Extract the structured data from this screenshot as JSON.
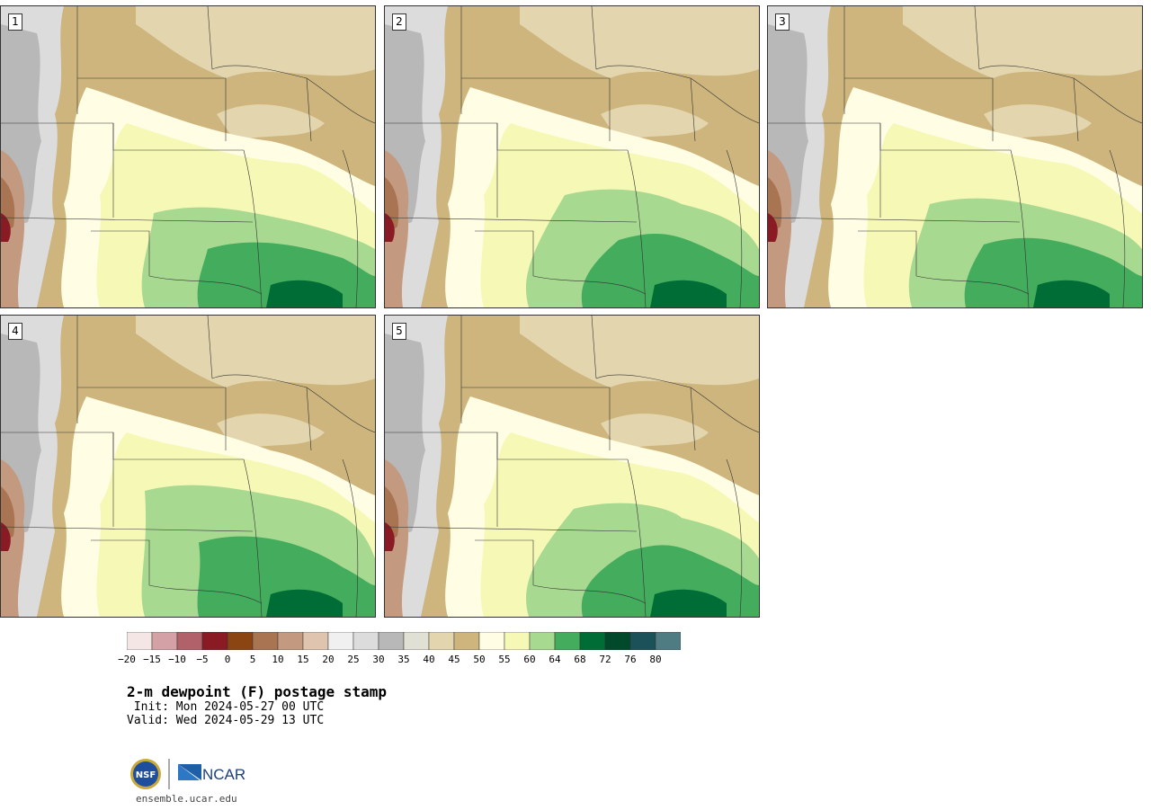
{
  "panels": [
    {
      "label": "1"
    },
    {
      "label": "2"
    },
    {
      "label": "3"
    },
    {
      "label": "4"
    },
    {
      "label": "5"
    }
  ],
  "colorbar": {
    "ticks": [
      "−20",
      "−15",
      "−10",
      "−5",
      "0",
      "5",
      "10",
      "15",
      "20",
      "25",
      "30",
      "35",
      "40",
      "45",
      "50",
      "55",
      "60",
      "64",
      "68",
      "72",
      "76",
      "80"
    ],
    "colors": [
      "#f5e6e6",
      "#d4a1a6",
      "#b0616a",
      "#8a1a24",
      "#8b4513",
      "#a87452",
      "#c39a80",
      "#dfc4b0",
      "#f0f0f0",
      "#dcdcdc",
      "#b8b8b8",
      "#e0e0d4",
      "#e3d6ae",
      "#cdb57d",
      "#fffde3",
      "#f6f9b6",
      "#a8d991",
      "#43ac5d",
      "#006d36",
      "#00492a",
      "#1d5159",
      "#4f7b82"
    ]
  },
  "title": "2-m dewpoint (F) postage stamp",
  "init": " Init: Mon 2024-05-27 00 UTC",
  "valid": "Valid: Wed 2024-05-29 13 UTC",
  "logos": {
    "nsf": "NSF",
    "ncar": "NCAR"
  },
  "url": "ensemble.ucar.edu"
}
